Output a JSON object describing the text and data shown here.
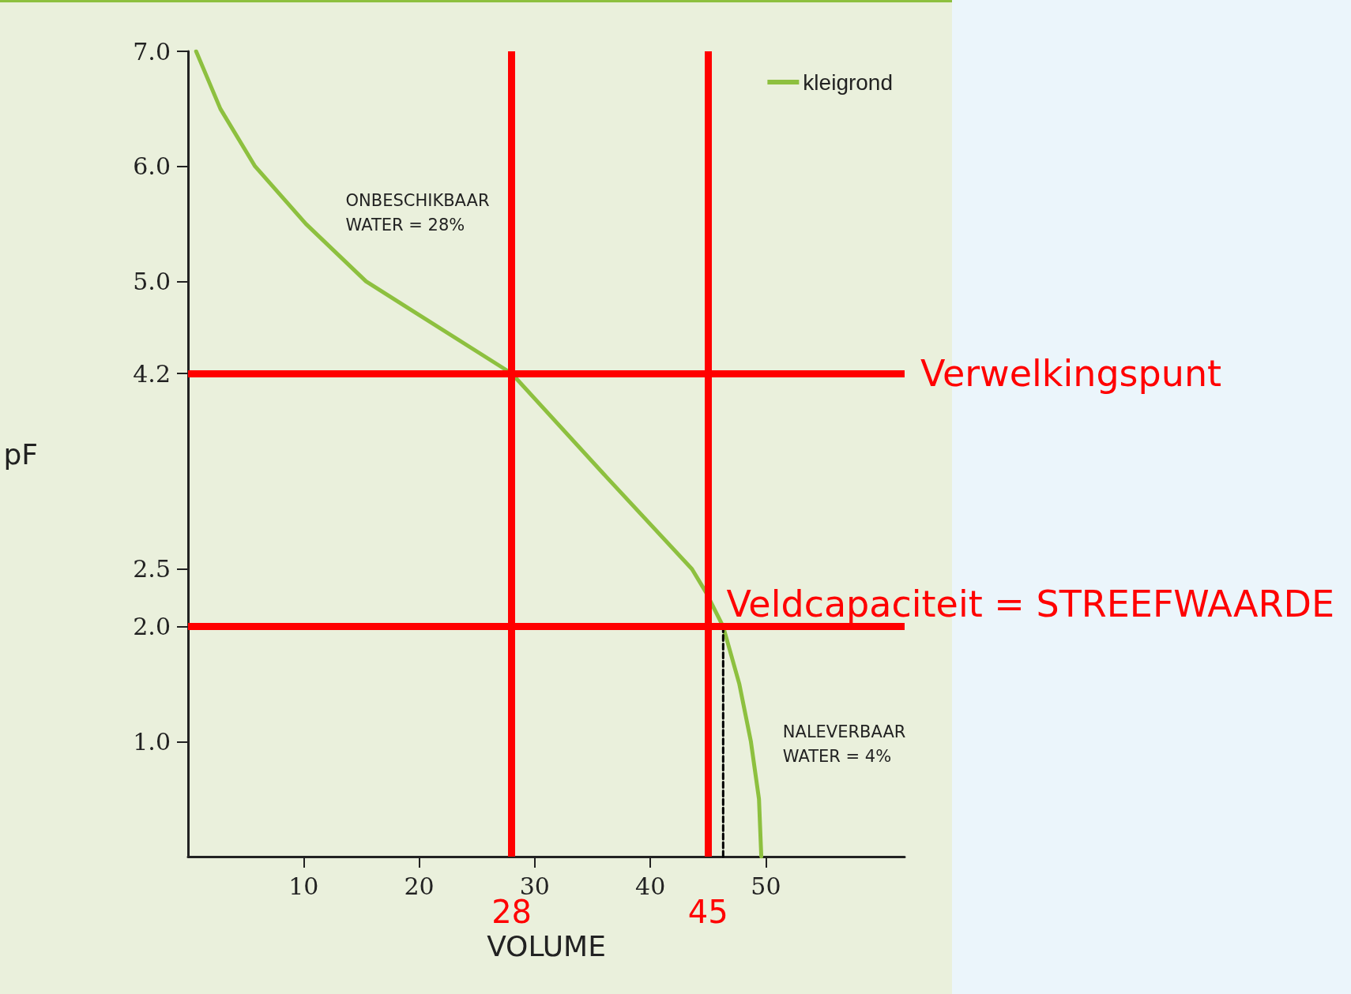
{
  "chart_data": {
    "type": "line",
    "xlabel": "VOLUME",
    "ylabel": "pF",
    "xlim": [
      0,
      62
    ],
    "xticks": [
      10,
      20,
      30,
      40,
      50
    ],
    "ylim": [
      0,
      7
    ],
    "yticks": [
      {
        "value": 7,
        "label": "7.0"
      },
      {
        "value": 6,
        "label": "6.0"
      },
      {
        "value": 5,
        "label": "5.0"
      },
      {
        "value": 4.2,
        "label": "4.2"
      },
      {
        "value": 2.5,
        "label": "2.5"
      },
      {
        "value": 2,
        "label": "2.0"
      },
      {
        "value": 1,
        "label": "1.0"
      }
    ],
    "series": [
      {
        "name": "kleigrond",
        "color": "#8dc03f",
        "x": [
          0.7,
          2.8,
          5.8,
          10.2,
          15.4,
          28,
          36.2,
          43.6,
          44.8,
          46.3,
          47.7,
          48.7,
          49.4,
          49.6
        ],
        "values": [
          7.0,
          6.5,
          6.0,
          5.5,
          5.0,
          4.2,
          3.3,
          2.5,
          2.3,
          2.0,
          1.5,
          1.0,
          0.5,
          0
        ]
      },
      {
        "color": "#000000",
        "line_style": "dashed",
        "x": [
          46.3,
          46.3
        ],
        "values": [
          0,
          2.0
        ]
      }
    ],
    "ref_lines": [
      {
        "axis": "y",
        "value": 4.2,
        "label": "Verwelkingspunt",
        "color": "#ff0000"
      },
      {
        "axis": "y",
        "value": 2.0,
        "label": "Veldcapaciteit = STREEFWAARDE",
        "color": "#ff0000"
      },
      {
        "axis": "x",
        "value": 28,
        "label": "28",
        "color": "#ff0000"
      },
      {
        "axis": "x",
        "value": 45,
        "label": "45",
        "color": "#ff0000"
      }
    ],
    "annotations": [
      "ONBESCHIKBAAR\nWATER = 28%",
      "NALEVERBAAR\nWATER = 4%"
    ],
    "legend": "top right",
    "marker": "none",
    "grid": false
  }
}
